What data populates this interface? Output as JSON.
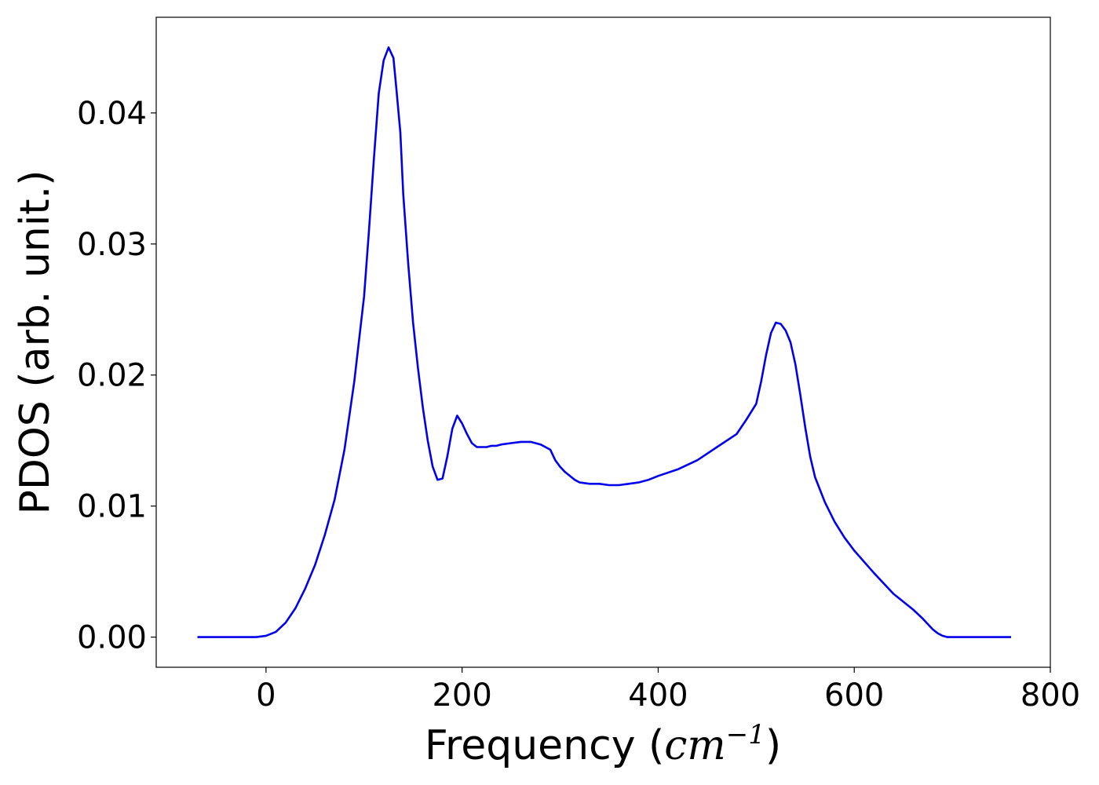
{
  "chart_data": {
    "type": "line",
    "xlabel_prefix": "Frequency (",
    "xlabel_unit_base": "cm",
    "xlabel_unit_exp": "−1",
    "xlabel_suffix": ")",
    "ylabel": "PDOS (arb. unit.)",
    "xlim": [
      -112,
      800
    ],
    "ylim": [
      -0.0023,
      0.0473
    ],
    "xticks": [
      0,
      200,
      400,
      600,
      800
    ],
    "xtick_labels": [
      "0",
      "200",
      "400",
      "600",
      "800"
    ],
    "yticks": [
      0.0,
      0.01,
      0.02,
      0.03,
      0.04
    ],
    "ytick_labels": [
      "0.00",
      "0.01",
      "0.02",
      "0.03",
      "0.04"
    ],
    "grid": false,
    "line_color": "#0000ee",
    "series": [
      {
        "x": [
          -70,
          -40,
          -10,
          0,
          10,
          20,
          30,
          40,
          50,
          60,
          70,
          80,
          90,
          100,
          105,
          110,
          115,
          120,
          125,
          130,
          133,
          137,
          140,
          145,
          150,
          155,
          160,
          165,
          170,
          175,
          180,
          185,
          190,
          195,
          200,
          205,
          210,
          215,
          220,
          225,
          230,
          235,
          240,
          250,
          260,
          270,
          280,
          290,
          295,
          300,
          305,
          310,
          315,
          320,
          330,
          340,
          350,
          360,
          370,
          380,
          390,
          400,
          420,
          440,
          460,
          480,
          490,
          500,
          505,
          510,
          515,
          520,
          525,
          530,
          535,
          540,
          545,
          550,
          555,
          560,
          570,
          580,
          590,
          600,
          620,
          640,
          660,
          670,
          680,
          685,
          690,
          695,
          700,
          710,
          730,
          760
        ],
        "y": [
          0.0,
          0.0,
          0.0,
          0.0001,
          0.0004,
          0.0011,
          0.0022,
          0.0037,
          0.0055,
          0.0078,
          0.0105,
          0.0143,
          0.0195,
          0.026,
          0.031,
          0.0365,
          0.0415,
          0.044,
          0.045,
          0.0442,
          0.0418,
          0.0385,
          0.0338,
          0.0285,
          0.024,
          0.0205,
          0.0175,
          0.015,
          0.013,
          0.012,
          0.0121,
          0.0138,
          0.0159,
          0.0169,
          0.0163,
          0.0155,
          0.0148,
          0.0145,
          0.0145,
          0.0145,
          0.0146,
          0.0146,
          0.0147,
          0.0148,
          0.0149,
          0.0149,
          0.0147,
          0.0143,
          0.0135,
          0.013,
          0.0126,
          0.0123,
          0.012,
          0.0118,
          0.0117,
          0.0117,
          0.0116,
          0.0116,
          0.0117,
          0.0118,
          0.012,
          0.0123,
          0.0128,
          0.0135,
          0.0145,
          0.0155,
          0.0166,
          0.0178,
          0.0195,
          0.0215,
          0.0232,
          0.024,
          0.0239,
          0.0234,
          0.0225,
          0.0208,
          0.0185,
          0.016,
          0.0138,
          0.0122,
          0.0103,
          0.0088,
          0.0076,
          0.0066,
          0.0049,
          0.0033,
          0.0021,
          0.0014,
          0.0006,
          0.0003,
          0.0001,
          0.0,
          0.0,
          0.0,
          0.0,
          0.0
        ]
      }
    ]
  }
}
